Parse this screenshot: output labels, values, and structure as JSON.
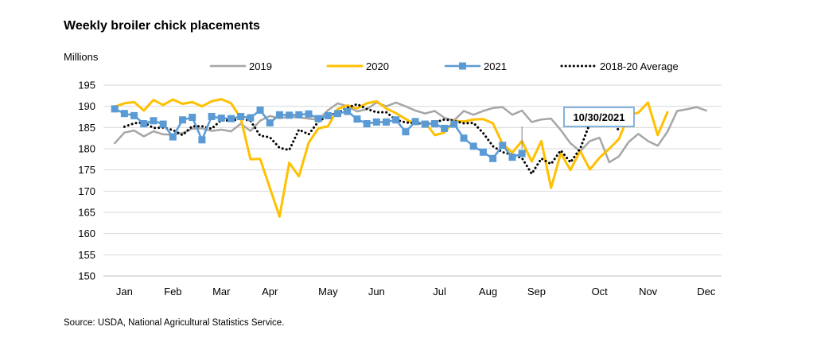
{
  "title": "Weekly broiler chick placements",
  "source": "Source: USDA, National Agricultural Statistics Service.",
  "chart_data": {
    "type": "line",
    "title": "Weekly broiler chick placements",
    "ylabel": "Millions",
    "xlabel": "",
    "ylim": [
      150,
      195
    ],
    "yticks": [
      150,
      155,
      160,
      165,
      170,
      175,
      180,
      185,
      190,
      195
    ],
    "month_labels": [
      {
        "label": "Jan",
        "week": 3
      },
      {
        "label": "Feb",
        "week": 8
      },
      {
        "label": "Mar",
        "week": 13
      },
      {
        "label": "Apr",
        "week": 18
      },
      {
        "label": "May",
        "week": 24
      },
      {
        "label": "Jun",
        "week": 29
      },
      {
        "label": "Jul",
        "week": 35.5
      },
      {
        "label": "Aug",
        "week": 40.5
      },
      {
        "label": "Sep",
        "week": 45.5
      },
      {
        "label": "Oct",
        "week": 52
      },
      {
        "label": "Nov",
        "week": 57
      },
      {
        "label": "Dec",
        "week": 63
      }
    ],
    "grid": "horizontal",
    "legend": "top",
    "series": [
      {
        "name": "2019",
        "color": "#a6a6a6",
        "style": "solid",
        "values": [
          181.3,
          183.8,
          184.3,
          182.9,
          184.1,
          183.4,
          183.3,
          183.7,
          184.7,
          184.8,
          184.2,
          184.5,
          184.1,
          185.9,
          184.2,
          186.6,
          187.7,
          187.2,
          187.5,
          187.4,
          187.1,
          186.8,
          189.1,
          190.7,
          190.0,
          188.8,
          189.3,
          190.9,
          190.0,
          190.9,
          190.0,
          189.0,
          188.3,
          188.9,
          187.3,
          186.7,
          188.9,
          188.0,
          188.9,
          189.6,
          189.8,
          188.0,
          189.0,
          186.3,
          186.9,
          187.1,
          184.4,
          181.3,
          179.4,
          181.8,
          182.6,
          176.8,
          178.2,
          181.6,
          183.5,
          181.8,
          180.7,
          184.0,
          188.9,
          189.3,
          189.8,
          189.0
        ]
      },
      {
        "name": "2020",
        "color": "#ffc000",
        "style": "solid",
        "values": [
          189.9,
          190.7,
          191.0,
          189.0,
          191.5,
          190.3,
          191.6,
          190.6,
          191.0,
          190.0,
          191.2,
          191.7,
          190.7,
          187.2,
          177.5,
          177.6,
          170.8,
          164.0,
          176.7,
          173.5,
          181.4,
          184.8,
          185.3,
          189.4,
          190.2,
          189.5,
          190.7,
          191.2,
          189.5,
          188.4,
          187.0,
          185.8,
          186.3,
          183.2,
          183.8,
          186.6,
          186.4,
          186.9,
          187.0,
          186.0,
          181.1,
          179.1,
          181.8,
          177.0,
          181.8,
          170.8,
          178.9,
          175.0,
          179.5,
          175.1,
          177.9,
          180.0,
          182.3,
          188.0,
          188.5,
          190.9,
          183.2,
          188.6
        ]
      },
      {
        "name": "2021",
        "color": "#5b9bd5",
        "style": "markers",
        "values": [
          189.4,
          188.3,
          187.8,
          185.9,
          186.6,
          185.8,
          182.8,
          186.8,
          187.4,
          182.1,
          187.6,
          187.2,
          187.1,
          187.6,
          187.3,
          189.1,
          186.1,
          188.0,
          187.9,
          188.0,
          188.2,
          187.1,
          187.8,
          188.3,
          188.8,
          187.0,
          185.9,
          186.3,
          186.3,
          186.8,
          184.0,
          186.4,
          185.8,
          185.9,
          184.8,
          185.8,
          182.5,
          180.6,
          179.2,
          177.7,
          180.8,
          178.0,
          178.9
        ]
      },
      {
        "name": "2018-20 Average",
        "color": "#000000",
        "style": "dotted",
        "values": [
          185.2,
          186.0,
          186.2,
          184.9,
          185.0,
          184.4,
          183.2,
          185.3,
          185.3,
          184.7,
          186.8,
          186.6,
          187.1,
          186.6,
          183.1,
          182.7,
          180.2,
          179.7,
          184.5,
          183.4,
          186.4,
          187.8,
          188.5,
          189.7,
          190.5,
          189.4,
          188.6,
          188.6,
          186.8,
          186.2,
          186.0,
          186.0,
          186.2,
          186.9,
          186.6,
          186.0,
          186.1,
          183.7,
          180.6,
          179.2,
          178.6,
          177.8,
          174.1,
          177.7,
          176.4,
          179.6,
          176.8,
          180.0,
          186.0,
          187.3,
          189.6,
          184.0
        ]
      }
    ],
    "series_start_week": [
      2,
      2,
      2,
      3
    ],
    "annotations": [
      {
        "text": "10/30/2021",
        "series": "2021",
        "point_index": 42
      }
    ]
  }
}
